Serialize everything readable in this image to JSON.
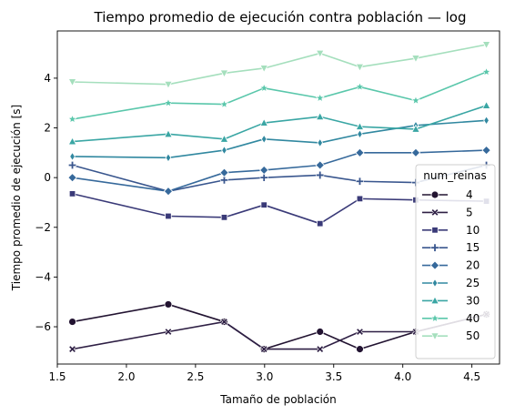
{
  "chart_data": {
    "type": "line",
    "title": "Tiempo promedio de ejecución contra población — log",
    "xlabel": "Tamaño de población",
    "ylabel": "Tiempo promedio de ejecución [s]",
    "xlim": [
      1.5,
      4.7
    ],
    "ylim": [
      -7.5,
      5.9
    ],
    "xticks": [
      1.5,
      2.0,
      2.5,
      3.0,
      3.5,
      4.0,
      4.5
    ],
    "xtick_labels": [
      "1.5",
      "2.0",
      "2.5",
      "3.0",
      "3.5",
      "4.0",
      "4.5"
    ],
    "yticks": [
      -6,
      -4,
      -2,
      0,
      2,
      4
    ],
    "ytick_labels": [
      "−6",
      "−4",
      "−2",
      "0",
      "2",
      "4"
    ],
    "grid": false,
    "legend_title": "num_reinas",
    "legend_position": "lower-right",
    "x": [
      1.609,
      2.303,
      2.708,
      2.996,
      3.401,
      3.689,
      4.094,
      4.605
    ],
    "series": [
      {
        "name": "4",
        "color": "#221331",
        "marker": "circle",
        "values": [
          -5.8,
          -5.1,
          -5.8,
          -6.9,
          -6.2,
          -6.9,
          -6.2,
          -5.5
        ]
      },
      {
        "name": "5",
        "color": "#2e1f44",
        "marker": "x",
        "values": [
          -6.9,
          -6.2,
          -5.8,
          -6.9,
          -6.9,
          -6.2,
          -6.2,
          -5.5
        ]
      },
      {
        "name": "10",
        "color": "#3a3a78",
        "marker": "square",
        "values": [
          -0.65,
          -1.55,
          -1.6,
          -1.1,
          -1.85,
          -0.85,
          -0.9,
          -0.95
        ]
      },
      {
        "name": "15",
        "color": "#39568e",
        "marker": "plus",
        "values": [
          0.5,
          -0.55,
          -0.1,
          0.0,
          0.1,
          -0.15,
          -0.2,
          0.5
        ]
      },
      {
        "name": "20",
        "color": "#36699b",
        "marker": "diamond",
        "values": [
          0.0,
          -0.55,
          0.2,
          0.3,
          0.5,
          1.0,
          1.0,
          1.1
        ]
      },
      {
        "name": "25",
        "color": "#3188a0",
        "marker": "thin_diamond",
        "values": [
          0.85,
          0.8,
          1.1,
          1.55,
          1.4,
          1.75,
          2.1,
          2.3
        ]
      },
      {
        "name": "30",
        "color": "#3aa6a4",
        "marker": "triangle-up",
        "values": [
          1.45,
          1.75,
          1.55,
          2.2,
          2.45,
          2.05,
          1.95,
          2.9
        ]
      },
      {
        "name": "40",
        "color": "#5ac7ab",
        "marker": "star",
        "values": [
          2.35,
          3.0,
          2.95,
          3.6,
          3.2,
          3.65,
          3.1,
          4.25
        ]
      },
      {
        "name": "50",
        "color": "#a5dfbd",
        "marker": "triangle-down",
        "values": [
          3.85,
          3.75,
          4.2,
          4.4,
          5.0,
          4.45,
          4.8,
          5.35
        ]
      }
    ]
  }
}
